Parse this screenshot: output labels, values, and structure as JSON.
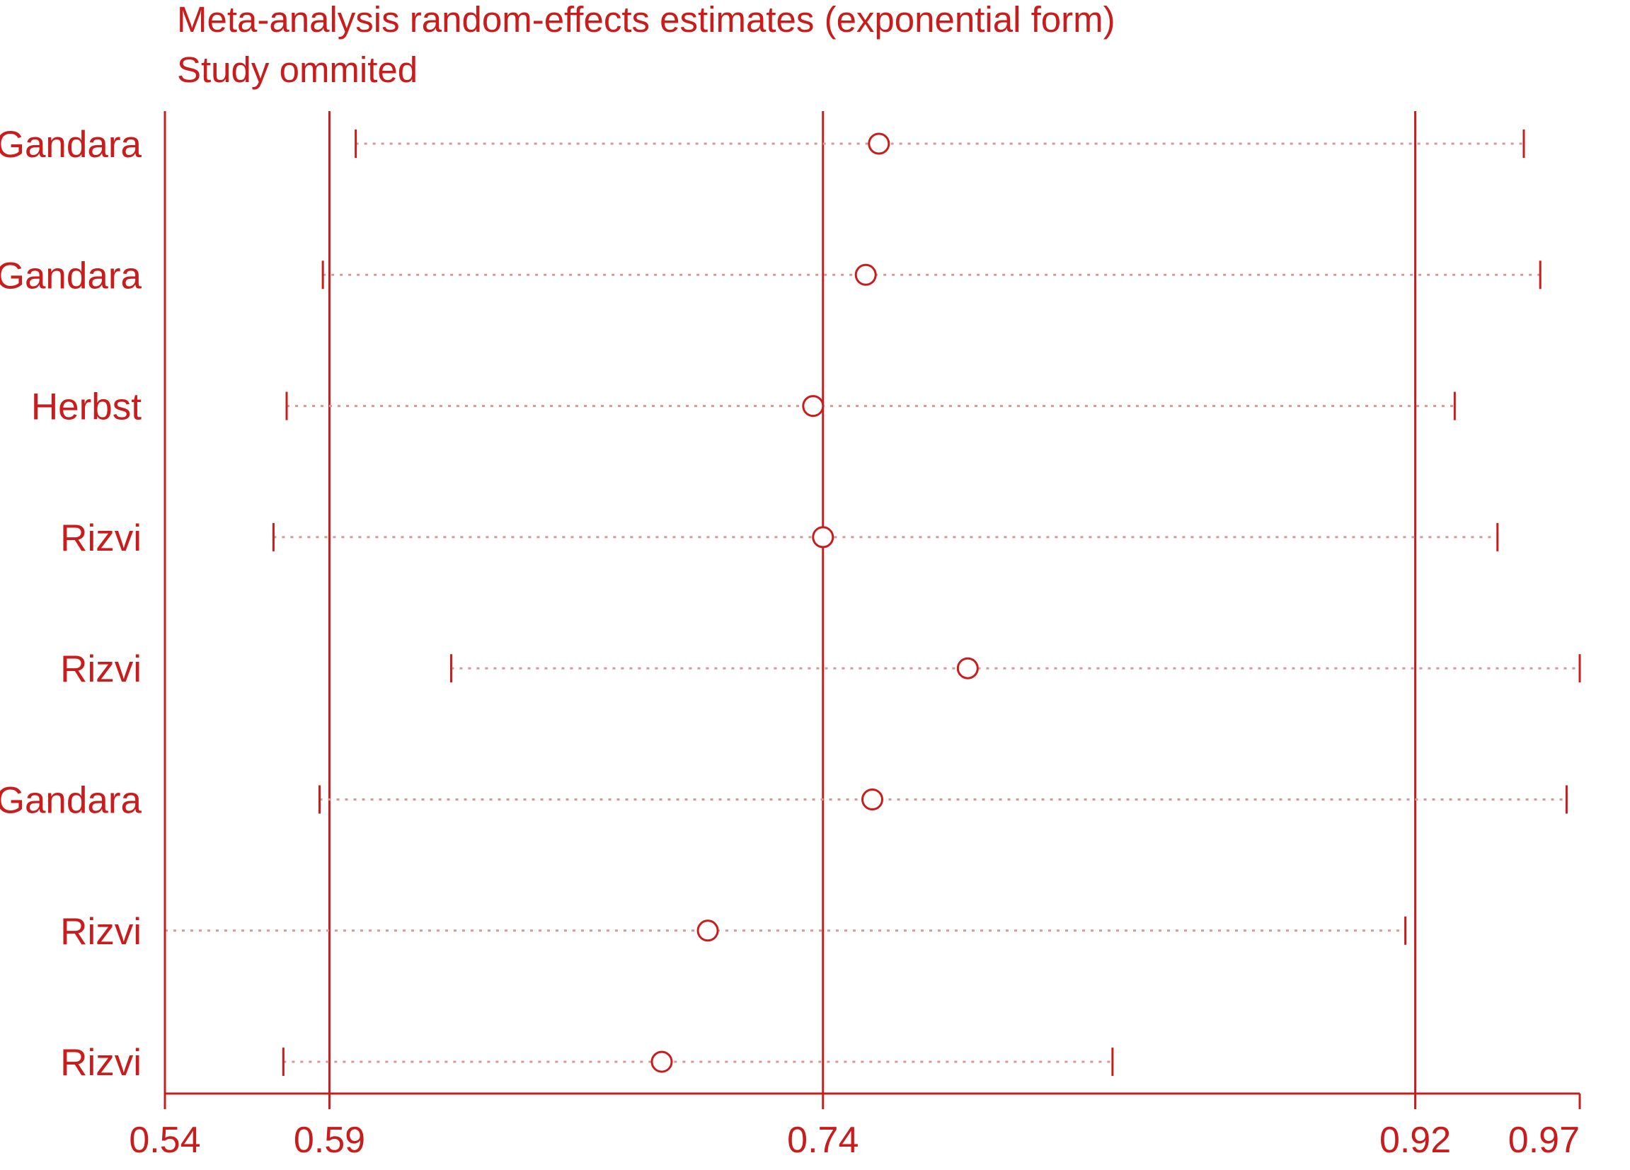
{
  "chart_data": {
    "type": "scatter",
    "title": "Meta-analysis random-effects estimates (exponential form)",
    "subtitle": "Study ommited",
    "xlabel": "",
    "ylabel": "",
    "x_ticks": [
      "0.54",
      "0.59",
      "0.74",
      "0.92",
      "0.97"
    ],
    "x_tick_values": [
      0.54,
      0.59,
      0.74,
      0.92,
      0.97
    ],
    "xlim": [
      0.54,
      0.97
    ],
    "reference_lines": [
      0.59,
      0.74,
      0.92
    ],
    "grid": false,
    "legend": "none",
    "studies": [
      {
        "label": "Gandara",
        "estimate": 0.757,
        "lower": 0.598,
        "upper": 0.953
      },
      {
        "label": "Gandara",
        "estimate": 0.753,
        "lower": 0.588,
        "upper": 0.958
      },
      {
        "label": "Herbst",
        "estimate": 0.737,
        "lower": 0.577,
        "upper": 0.932
      },
      {
        "label": "Rizvi",
        "estimate": 0.74,
        "lower": 0.573,
        "upper": 0.945
      },
      {
        "label": "Rizvi",
        "estimate": 0.784,
        "lower": 0.627,
        "upper": 0.97
      },
      {
        "label": "Gandara",
        "estimate": 0.755,
        "lower": 0.587,
        "upper": 0.966
      },
      {
        "label": "Rizvi",
        "estimate": 0.705,
        "lower": 0.54,
        "upper": 0.917
      },
      {
        "label": "Rizvi",
        "estimate": 0.691,
        "lower": 0.576,
        "upper": 0.828
      }
    ],
    "colors": {
      "text": "#c91d1d",
      "axis": "#c91d1d",
      "interval": "#d49a9a",
      "marker": "#c91d1d"
    }
  }
}
